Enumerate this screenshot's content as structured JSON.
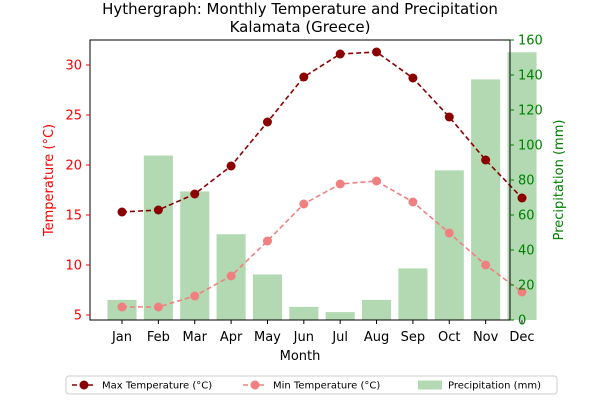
{
  "chart_data": {
    "type": "bar+line",
    "title": "Hythergraph: Monthly Temperature and Precipitation",
    "subtitle": "Kalamata (Greece)",
    "xlabel": "Month",
    "ylabel_left": "Temperature (°C)",
    "ylabel_right": "Precipitation (mm)",
    "categories": [
      "Jan",
      "Feb",
      "Mar",
      "Apr",
      "May",
      "Jun",
      "Jul",
      "Aug",
      "Sep",
      "Oct",
      "Nov",
      "Dec"
    ],
    "ylim_left": [
      4.5,
      32.5
    ],
    "ylim_right": [
      0,
      160
    ],
    "left_ticks": [
      5,
      10,
      15,
      20,
      25,
      30
    ],
    "right_ticks": [
      0,
      20,
      40,
      60,
      80,
      100,
      120,
      140,
      160
    ],
    "series": [
      {
        "name": "Max Temperature (°C)",
        "kind": "line",
        "axis": "left",
        "style": "dashed with circle markers",
        "color": "#8b0000",
        "values": [
          15.3,
          15.5,
          17.1,
          19.9,
          24.3,
          28.8,
          31.1,
          31.3,
          28.7,
          24.8,
          20.5,
          16.7
        ]
      },
      {
        "name": "Min Temperature (°C)",
        "kind": "line",
        "axis": "left",
        "style": "dashed with circle markers",
        "color": "#f08080",
        "values": [
          5.8,
          5.8,
          6.9,
          8.9,
          12.4,
          16.1,
          18.1,
          18.4,
          16.3,
          13.2,
          10.0,
          7.3
        ]
      },
      {
        "name": "Precipitation (mm)",
        "kind": "bar",
        "axis": "right",
        "color": "#b2d9b2",
        "values": [
          11.5,
          94.0,
          73.5,
          49.0,
          26.0,
          7.5,
          4.5,
          11.5,
          29.5,
          85.5,
          137.5,
          153.0
        ]
      }
    ],
    "legend": {
      "placement": "bottom-center",
      "entries": [
        "Max Temperature (°C)",
        "Min Temperature (°C)",
        "Precipitation (mm)"
      ]
    },
    "colors": {
      "left_axis": "#ff0000",
      "right_axis": "#008000"
    },
    "grid": false
  }
}
